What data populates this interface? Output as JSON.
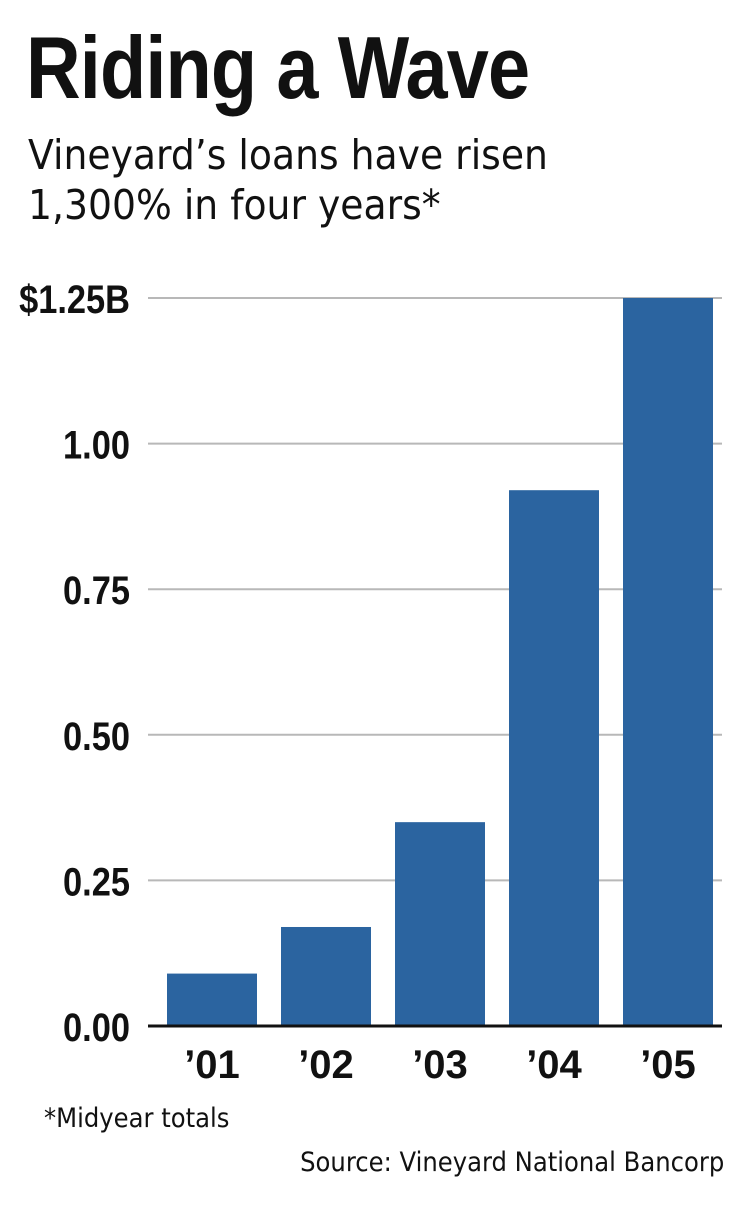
{
  "header": {
    "title": "Riding a Wave",
    "subtitle_lines": [
      "Vineyard’s loans have risen",
      "1,300% in four years*"
    ]
  },
  "chart_data": {
    "type": "bar",
    "categories": [
      "’01",
      "’02",
      "’03",
      "’04",
      "’05"
    ],
    "values": [
      0.09,
      0.17,
      0.35,
      0.92,
      1.25
    ],
    "ylim": [
      0,
      1.25
    ],
    "yticks": [
      0,
      0.25,
      0.5,
      0.75,
      1.0,
      1.25
    ],
    "ytick_labels": [
      "0.00",
      "0.25",
      "0.50",
      "0.75",
      "1.00",
      "$1.25B"
    ],
    "grid": true,
    "bar_color": "#2b64a0",
    "grid_color": "#b8b8b8"
  },
  "footer": {
    "footnote": "*Midyear totals",
    "source": "Source: Vineyard National Bancorp"
  }
}
